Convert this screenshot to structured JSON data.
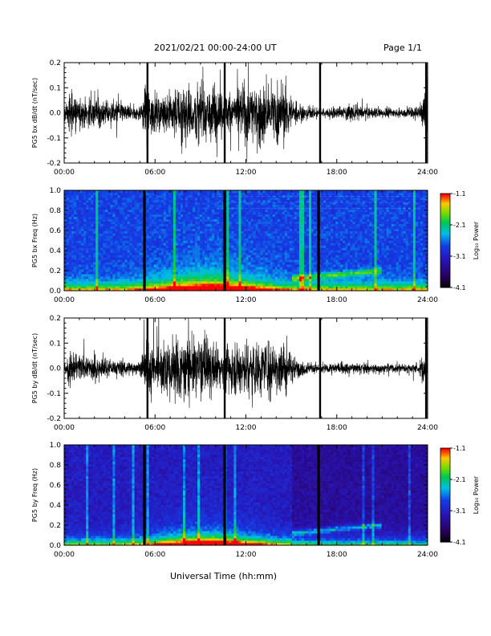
{
  "header": {
    "title": "2021/02/21   00:00-24:00 UT",
    "page": "Page 1/1"
  },
  "xlabel": "Universal Time (hh:mm)",
  "chart_data": [
    {
      "type": "line",
      "ylabel": "PG5 bx dB/dt (nT/sec)",
      "xlim": [
        0,
        24
      ],
      "ylim": [
        -0.2,
        0.2
      ],
      "x_ticks": [
        "00:00",
        "06:00",
        "12:00",
        "18:00",
        "24:00"
      ],
      "y_ticks": [
        "-0.2",
        "-0.1",
        "0.0",
        "0.1",
        "0.2"
      ],
      "envelope": {
        "hours": [
          0,
          0.5,
          1.0,
          1.5,
          2.0,
          3.0,
          4.0,
          5.0,
          5.5,
          6.0,
          7.0,
          8.0,
          9.0,
          10.0,
          10.5,
          11.0,
          12.0,
          13.0,
          14.0,
          14.5,
          15.0,
          16.0,
          17.0,
          18.0,
          19.0,
          20.0,
          21.0,
          22.0,
          23.0,
          23.5,
          24.0
        ],
        "amplitude": [
          0.05,
          0.15,
          0.1,
          0.08,
          0.12,
          0.08,
          0.06,
          0.04,
          0.2,
          0.1,
          0.15,
          0.2,
          0.18,
          0.2,
          0.12,
          0.15,
          0.2,
          0.18,
          0.2,
          0.2,
          0.1,
          0.04,
          0.03,
          0.04,
          0.05,
          0.04,
          0.035,
          0.03,
          0.04,
          0.05,
          0.2
        ]
      },
      "gaps_hours": [
        5.5,
        10.6,
        16.9,
        23.9
      ]
    },
    {
      "type": "heatmap",
      "ylabel": "PG5 bx Freq (Hz)",
      "colorbar_label": "Log₁₀ Power",
      "colorbar_ticks": [
        "-1.1",
        "-2.1",
        "-3.1",
        "-4.1"
      ],
      "clim": [
        -4.1,
        -1.1
      ],
      "xlim": [
        0,
        24
      ],
      "ylim": [
        0.0,
        1.0
      ],
      "x_ticks": [
        "00:00",
        "06:00",
        "12:00",
        "18:00",
        "24:00"
      ],
      "y_ticks": [
        "0.0",
        "0.2",
        "0.4",
        "0.6",
        "0.8",
        "1.0"
      ],
      "gaps_hours": [
        5.3,
        10.6,
        16.8
      ]
    },
    {
      "type": "line",
      "ylabel": "PG5 by dB/dt (nT/sec)",
      "xlim": [
        0,
        24
      ],
      "ylim": [
        -0.2,
        0.2
      ],
      "x_ticks": [
        "00:00",
        "06:00",
        "12:00",
        "18:00",
        "24:00"
      ],
      "y_ticks": [
        "-0.2",
        "-0.1",
        "0.0",
        "0.1",
        "0.2"
      ],
      "envelope": {
        "hours": [
          0,
          0.5,
          1.0,
          1.5,
          2.0,
          3.0,
          4.0,
          5.0,
          5.5,
          6.0,
          7.0,
          8.0,
          9.0,
          10.0,
          10.5,
          11.0,
          12.0,
          13.0,
          14.0,
          14.5,
          15.0,
          16.0,
          17.0,
          18.0,
          19.0,
          20.0,
          21.0,
          22.0,
          23.0,
          23.5,
          24.0
        ],
        "amplitude": [
          0.04,
          0.12,
          0.1,
          0.07,
          0.09,
          0.06,
          0.05,
          0.04,
          0.2,
          0.12,
          0.2,
          0.2,
          0.2,
          0.15,
          0.12,
          0.15,
          0.18,
          0.18,
          0.2,
          0.18,
          0.08,
          0.04,
          0.03,
          0.04,
          0.04,
          0.035,
          0.03,
          0.03,
          0.035,
          0.04,
          0.2
        ]
      },
      "gaps_hours": [
        5.5,
        10.6,
        16.9,
        23.9
      ]
    },
    {
      "type": "heatmap",
      "ylabel": "PG5 by Freq (Hz)",
      "colorbar_label": "Log₁₀ Power",
      "colorbar_ticks": [
        "-1.1",
        "-2.1",
        "-3.1",
        "-4.1"
      ],
      "clim": [
        -4.1,
        -1.1
      ],
      "xlim": [
        0,
        24
      ],
      "ylim": [
        0.0,
        1.0
      ],
      "x_ticks": [
        "00:00",
        "06:00",
        "12:00",
        "18:00",
        "24:00"
      ],
      "y_ticks": [
        "0.0",
        "0.2",
        "0.4",
        "0.6",
        "0.8",
        "1.0"
      ],
      "gaps_hours": [
        5.3,
        10.6,
        16.8
      ]
    }
  ]
}
